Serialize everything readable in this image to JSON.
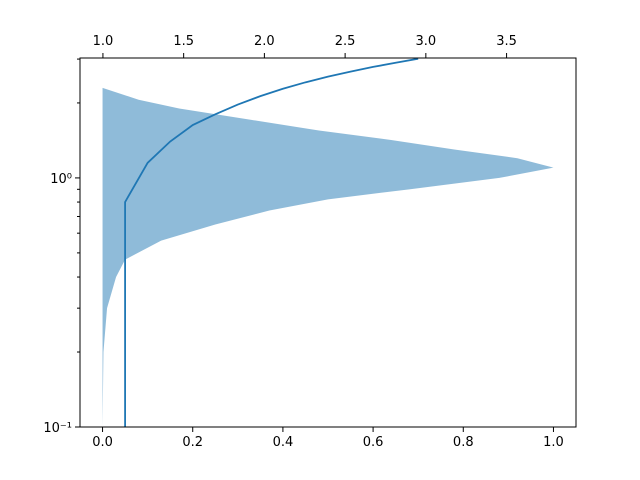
{
  "chart_data": {
    "type": "line",
    "xlim": [
      -0.05,
      1.05
    ],
    "xticks": [
      {
        "value": 0.0,
        "label": "0.0"
      },
      0.2,
      0.4,
      0.6,
      0.8,
      {
        "value": 1.0,
        "label": "1.0"
      }
    ],
    "x2lim": [
      0.858,
      3.93
    ],
    "x2ticks": [
      {
        "value": 1.0,
        "label": "1.0"
      },
      1.5,
      {
        "value": 2.0,
        "label": "2.0"
      },
      2.5,
      {
        "value": 3.0,
        "label": "3.0"
      },
      3.5
    ],
    "ylim": [
      0.1,
      3.03
    ],
    "log_y": true,
    "yticks": [
      {
        "value": 0.1,
        "label": "10⁻¹"
      },
      {
        "value": 1,
        "label": "10⁰"
      }
    ],
    "yminorticks": [
      0.2,
      0.3,
      0.4,
      0.5,
      0.6,
      0.7,
      0.8,
      0.9,
      2,
      3
    ],
    "series": [
      {
        "type": "area",
        "color": "#1f77b4",
        "alpha": 0.5,
        "y": [
          0.1,
          0.2,
          0.3,
          0.4,
          0.47,
          0.56,
          0.65,
          0.74,
          0.82,
          0.9,
          1.0,
          1.1,
          1.2,
          1.3,
          1.42,
          1.55,
          1.71,
          1.9,
          2.06,
          2.3
        ],
        "x": [
          0,
          0.002,
          0.01,
          0.03,
          0.05,
          0.13,
          0.25,
          0.37,
          0.5,
          0.68,
          0.88,
          1.0,
          0.92,
          0.78,
          0.64,
          0.48,
          0.33,
          0.17,
          0.08,
          0
        ]
      },
      {
        "type": "line",
        "color": "#1f77b4",
        "x": [
          0.05,
          0.05,
          0.1,
          0.15,
          0.2,
          0.25,
          0.3,
          0.35,
          0.4,
          0.45,
          0.5,
          0.55,
          0.6,
          0.65,
          0.7
        ],
        "y": [
          0.1,
          0.8,
          1.15,
          1.4,
          1.63,
          1.8,
          1.97,
          2.13,
          2.28,
          2.42,
          2.55,
          2.67,
          2.79,
          2.9,
          3.01
        ]
      }
    ]
  }
}
